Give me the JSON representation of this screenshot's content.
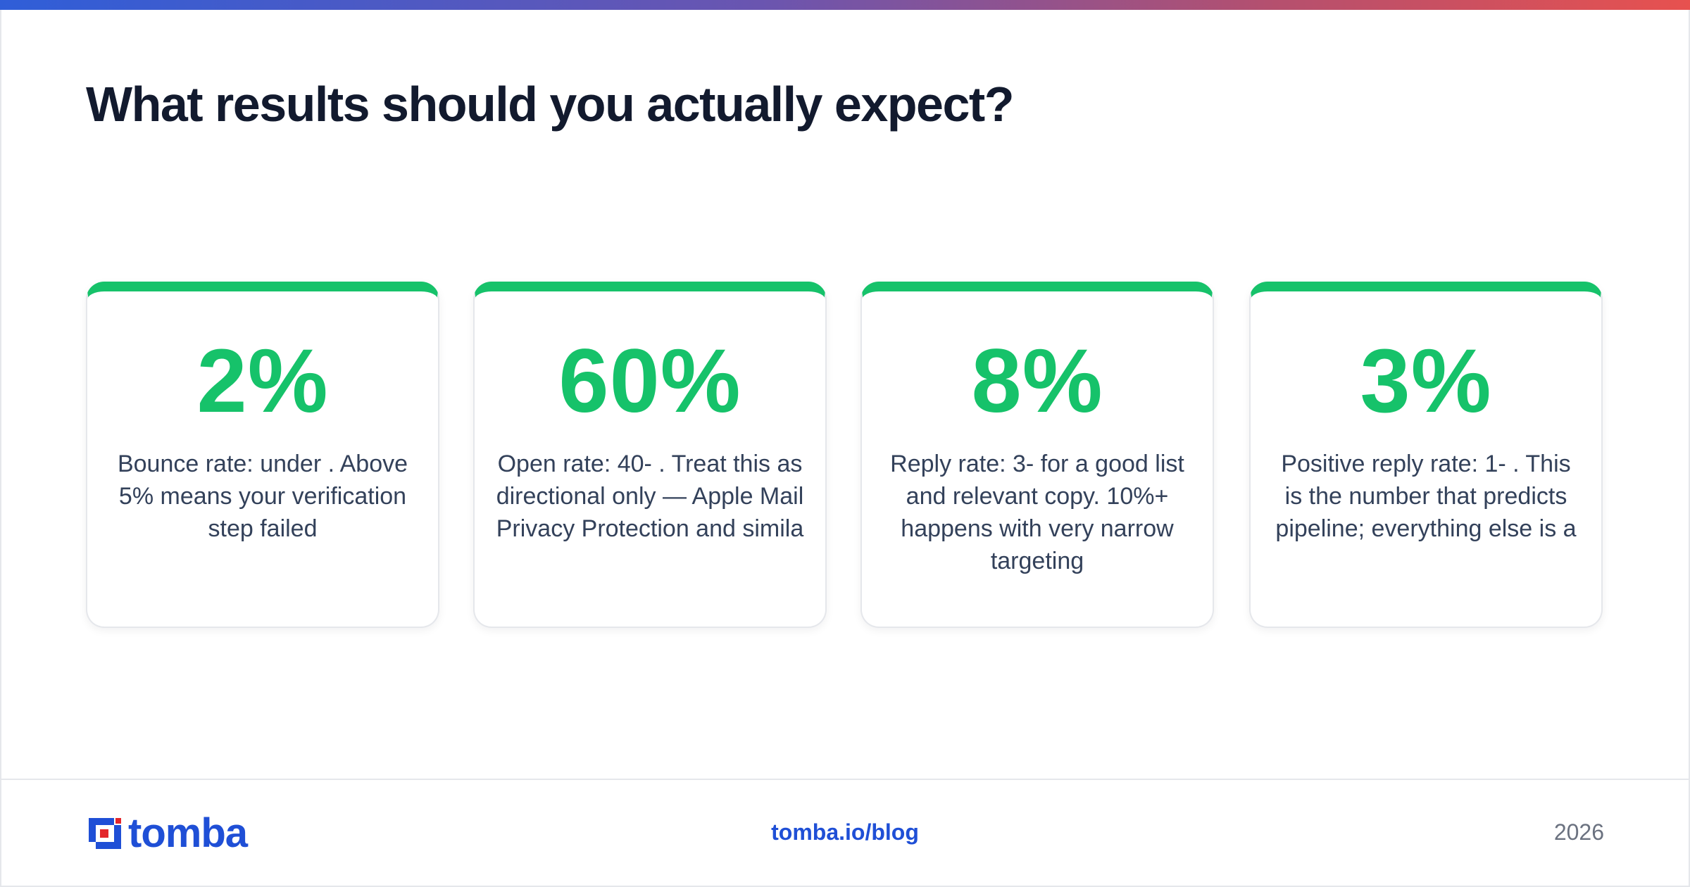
{
  "header": {
    "title": "What results should you actually expect?"
  },
  "cards": [
    {
      "value": "2%",
      "description": "Bounce rate: under . Above 5% means your verification step failed"
    },
    {
      "value": "60%",
      "description": "Open rate: 40- . Treat this as directional only — Apple Mail Privacy Protection and simila"
    },
    {
      "value": "8%",
      "description": "Reply rate: 3- for a good list and relevant copy. 10%+ happens with very narrow targeting"
    },
    {
      "value": "3%",
      "description": "Positive reply rate: 1- . This is the number that predicts pipeline; everything else is a"
    }
  ],
  "footer": {
    "logo_text": "tomba",
    "link": "tomba.io/blog",
    "year": "2026"
  },
  "colors": {
    "accent_green": "#16c26a",
    "brand_blue": "#1f4fd6",
    "logo_red": "#e3262b",
    "headline": "#121a2e"
  },
  "icons": {
    "logo_mark": "tomba-logo-icon"
  }
}
